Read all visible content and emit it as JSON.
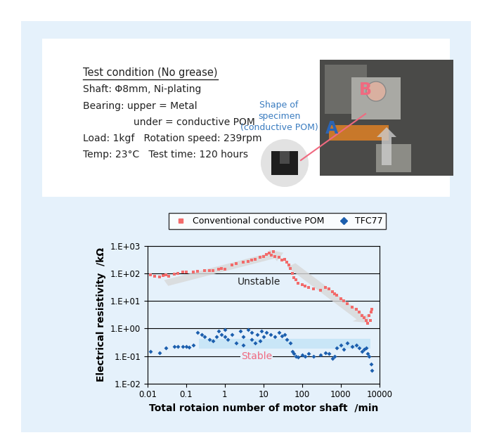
{
  "header": {
    "title": "Test condition (No grease)",
    "lines": [
      "Shaft: Φ8mm, Ni-plating",
      "Bearing: upper = Metal",
      "under = conductive POM",
      "Load: 1kgf   Rotation speed: 239rpm",
      "Temp: 23°C   Test time: 120 hours"
    ]
  },
  "photo": {
    "labels": [
      "A",
      "B"
    ],
    "specimen_caption": "Shape of\nspecimen\n(conductive POM)"
  },
  "chart_data": {
    "type": "scatter",
    "xlabel": "Total rotaion number of motor shaft  /min",
    "ylabel": "Electrical resistivity  /kΩ",
    "log": true,
    "grid": "y",
    "legend": "upper center",
    "xlim": [
      0.01,
      10000
    ],
    "ylim": [
      0.01,
      1000
    ],
    "xticks": [
      0.01,
      0.1,
      1,
      10,
      100,
      1000,
      10000
    ],
    "yticks": [
      {
        "value": 0.01,
        "label": "1.E-02"
      },
      {
        "value": 0.1,
        "label": "1.E-01"
      },
      {
        "value": 1,
        "label": "1.E+00"
      },
      {
        "value": 10,
        "label": "1.E+01"
      },
      {
        "value": 100,
        "label": "1.E+02"
      },
      {
        "value": 1000,
        "label": "1.E+03"
      }
    ],
    "annotations": [
      "Unstable",
      "Stable"
    ],
    "series": [
      {
        "name": "Conventional conductive POM",
        "color": "#f26b6b",
        "marker": "square",
        "x": [
          0.012,
          0.015,
          0.02,
          0.025,
          0.03,
          0.035,
          0.05,
          0.06,
          0.08,
          0.1,
          0.15,
          0.2,
          0.3,
          0.4,
          0.5,
          0.7,
          0.8,
          1,
          1.5,
          2,
          3,
          4,
          5,
          6,
          8,
          10,
          12,
          14,
          16,
          18,
          20,
          25,
          30,
          35,
          40,
          45,
          50,
          55,
          60,
          70,
          80,
          100,
          120,
          150,
          200,
          300,
          400,
          500,
          600,
          700,
          800,
          1000,
          1200,
          1500,
          2000,
          2500,
          3000,
          3500,
          4000,
          4500,
          5000,
          5500,
          5800,
          6000,
          6500
        ],
        "values": [
          90,
          80,
          75,
          85,
          90,
          80,
          95,
          100,
          110,
          115,
          110,
          120,
          125,
          130,
          125,
          140,
          150,
          145,
          200,
          230,
          250,
          270,
          300,
          320,
          380,
          420,
          500,
          550,
          450,
          600,
          420,
          380,
          300,
          320,
          250,
          200,
          150,
          100,
          70,
          60,
          45,
          40,
          35,
          30,
          28,
          25,
          30,
          28,
          22,
          18,
          16,
          12,
          10,
          8,
          6,
          5,
          4,
          3,
          2.5,
          2,
          1.5,
          3,
          2,
          4,
          5
        ]
      },
      {
        "name": "TFC77",
        "color": "#1c5fae",
        "marker": "diamond",
        "x": [
          0.012,
          0.02,
          0.03,
          0.05,
          0.06,
          0.08,
          0.1,
          0.12,
          0.15,
          0.2,
          0.25,
          0.3,
          0.4,
          0.5,
          0.6,
          0.7,
          0.8,
          1,
          1,
          1.2,
          1.5,
          2,
          2.5,
          3,
          3,
          4,
          5,
          5,
          6,
          7,
          8,
          9,
          10,
          12,
          15,
          20,
          25,
          30,
          35,
          40,
          50,
          55,
          60,
          70,
          80,
          100,
          120,
          150,
          200,
          300,
          400,
          500,
          600,
          700,
          800,
          1000,
          1200,
          1500,
          2000,
          2500,
          3000,
          3500,
          4000,
          4500,
          5000,
          5500,
          6000,
          6500
        ],
        "values": [
          0.15,
          0.13,
          0.2,
          0.22,
          0.22,
          0.22,
          0.22,
          0.21,
          0.25,
          0.7,
          0.6,
          0.5,
          0.4,
          0.35,
          0.5,
          0.8,
          0.6,
          0.9,
          0.5,
          0.4,
          0.6,
          0.3,
          0.8,
          0.5,
          0.25,
          0.9,
          0.4,
          0.7,
          0.3,
          0.6,
          0.35,
          0.8,
          0.5,
          0.7,
          0.6,
          0.5,
          0.7,
          0.55,
          0.6,
          0.4,
          0.3,
          0.15,
          0.12,
          0.1,
          0.09,
          0.11,
          0.1,
          0.12,
          0.1,
          0.11,
          0.13,
          0.12,
          0.08,
          0.1,
          0.2,
          0.25,
          0.18,
          0.3,
          0.22,
          0.25,
          0.2,
          0.15,
          0.18,
          0.2,
          0.12,
          0.1,
          0.05,
          0.03
        ]
      }
    ]
  }
}
